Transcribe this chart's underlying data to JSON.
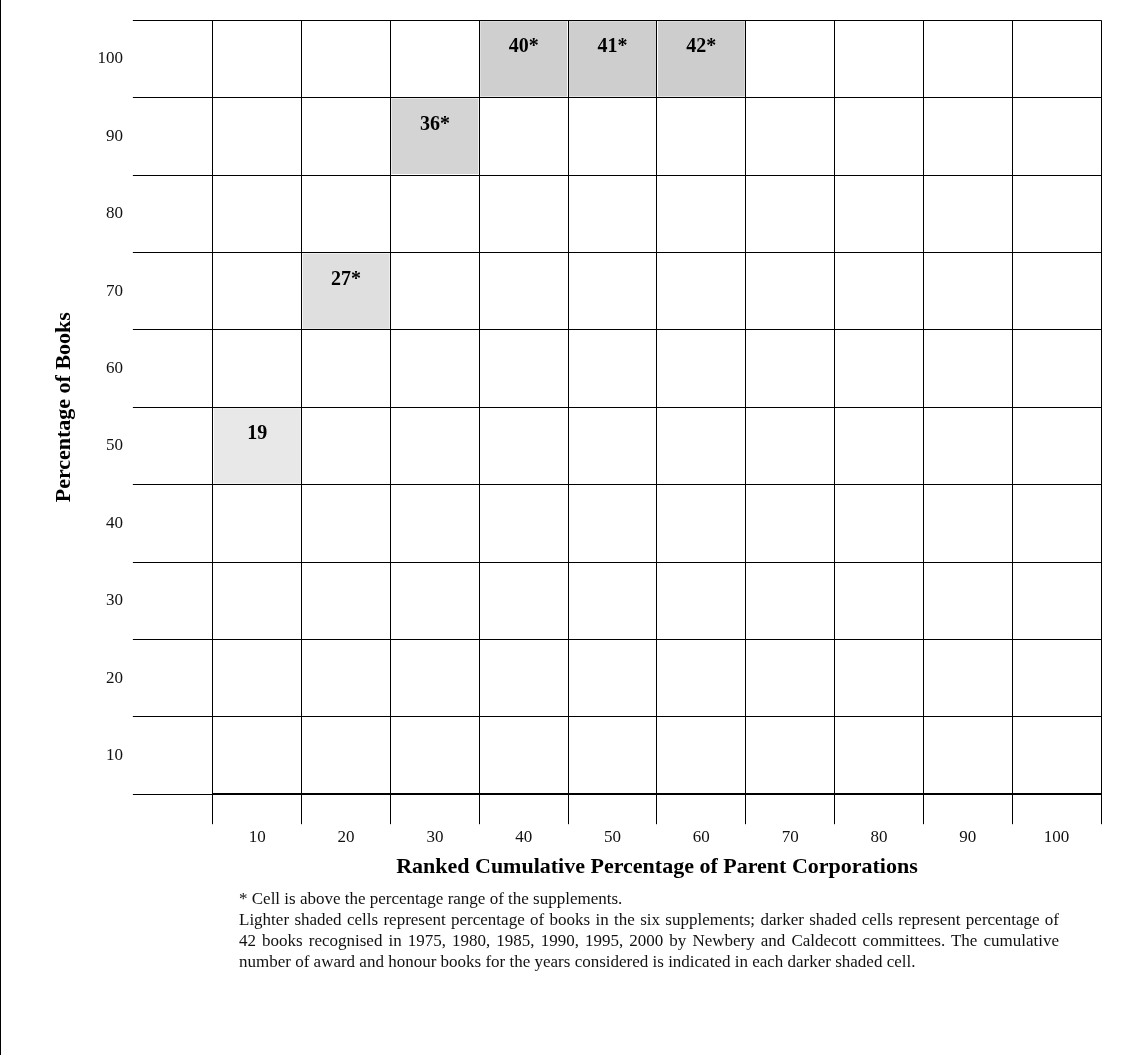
{
  "chart_data": {
    "type": "heatmap",
    "xlabel": "Ranked Cumulative Percentage of Parent Corporations",
    "ylabel": "Percentage of Books",
    "categories": [
      "10",
      "20",
      "30",
      "40",
      "50",
      "60",
      "70",
      "80",
      "90",
      "100"
    ],
    "y_categories": [
      "100",
      "90",
      "80",
      "70",
      "60",
      "50",
      "40",
      "30",
      "20",
      "10"
    ],
    "cells": [
      [
        null,
        null,
        null,
        40,
        41,
        42,
        null,
        null,
        null,
        null
      ],
      [
        null,
        null,
        36,
        null,
        null,
        null,
        null,
        null,
        null,
        null
      ],
      [
        null,
        null,
        null,
        null,
        null,
        null,
        null,
        null,
        null,
        null
      ],
      [
        null,
        27,
        null,
        null,
        null,
        null,
        null,
        null,
        null,
        null
      ],
      [
        null,
        null,
        null,
        null,
        null,
        null,
        null,
        null,
        null,
        null
      ],
      [
        19,
        null,
        null,
        null,
        null,
        null,
        null,
        null,
        null,
        null
      ],
      [
        null,
        null,
        null,
        null,
        null,
        null,
        null,
        null,
        null,
        null
      ],
      [
        null,
        null,
        null,
        null,
        null,
        null,
        null,
        null,
        null,
        null
      ],
      [
        null,
        null,
        null,
        null,
        null,
        null,
        null,
        null,
        null,
        null
      ],
      [
        null,
        null,
        null,
        null,
        null,
        null,
        null,
        null,
        null,
        null
      ]
    ],
    "cell_labels": [
      [
        null,
        null,
        null,
        "40*",
        "41*",
        "42*",
        null,
        null,
        null,
        null
      ],
      [
        null,
        null,
        "36*",
        null,
        null,
        null,
        null,
        null,
        null,
        null
      ],
      [
        null,
        null,
        null,
        null,
        null,
        null,
        null,
        null,
        null,
        null
      ],
      [
        null,
        "27*",
        null,
        null,
        null,
        null,
        null,
        null,
        null,
        null
      ],
      [
        null,
        null,
        null,
        null,
        null,
        null,
        null,
        null,
        null,
        null
      ],
      [
        "19",
        null,
        null,
        null,
        null,
        null,
        null,
        null,
        null,
        null
      ],
      [
        null,
        null,
        null,
        null,
        null,
        null,
        null,
        null,
        null,
        null
      ],
      [
        null,
        null,
        null,
        null,
        null,
        null,
        null,
        null,
        null,
        null
      ],
      [
        null,
        null,
        null,
        null,
        null,
        null,
        null,
        null,
        null,
        null
      ],
      [
        null,
        null,
        null,
        null,
        null,
        null,
        null,
        null,
        null,
        null
      ]
    ],
    "grid": true,
    "annotations": [
      "* Cell is above the percentage range of the supplements.",
      "Lighter shaded cells represent percentage of books in the six supplements; darker shaded cells represent percentage of 42  books recognised in 1975, 1980, 1985, 1990, 1995, 2000 by Newbery and Caldecott committees. The cumulative number of award and honour books for the years considered is indicated in each darker shaded cell."
    ]
  }
}
